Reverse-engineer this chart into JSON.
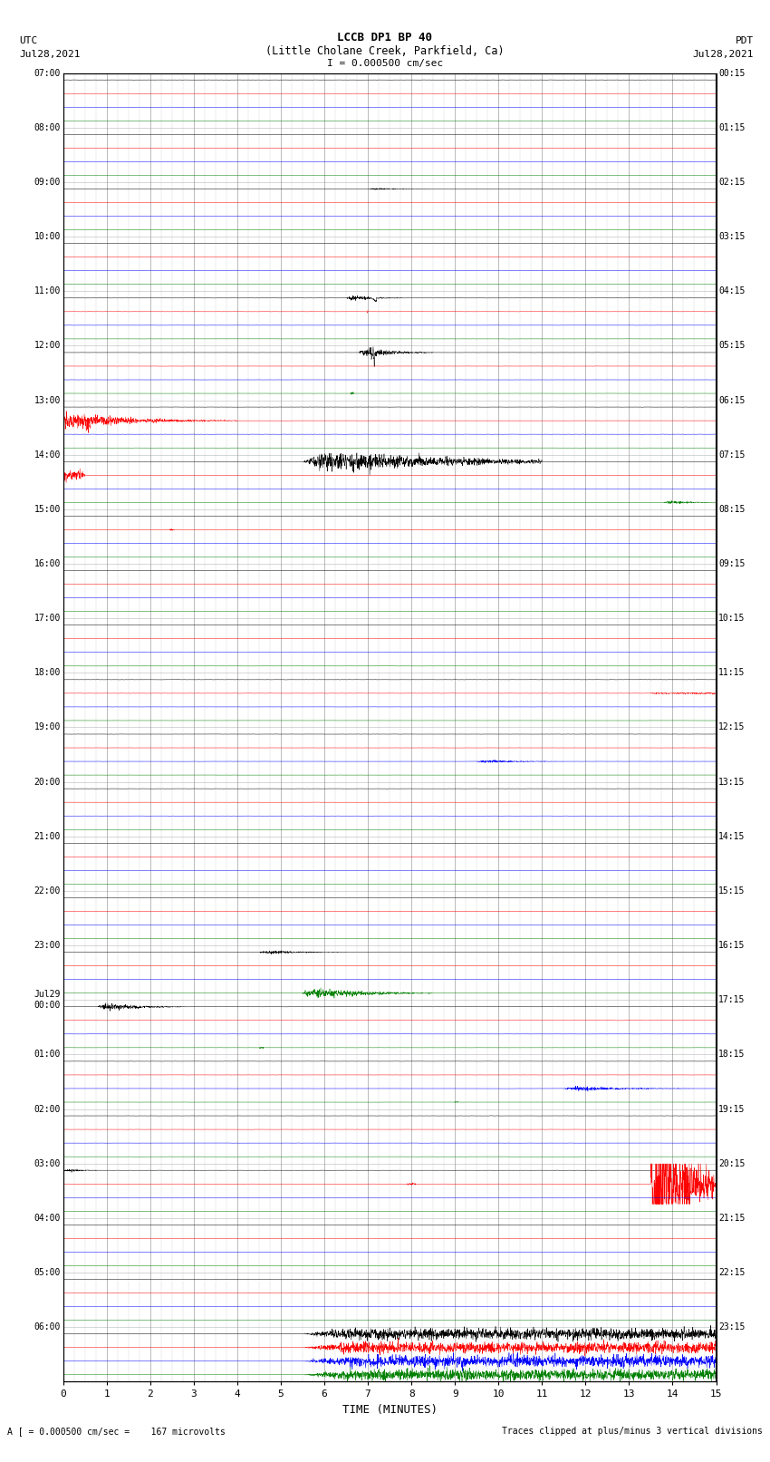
{
  "title_line1": "LCCB DP1 BP 40",
  "title_line2": "(Little Cholane Creek, Parkfield, Ca)",
  "title_line3": "I = 0.000500 cm/sec",
  "left_label_top": "UTC",
  "left_label_date": "Jul28,2021",
  "right_label_top": "PDT",
  "right_label_date": "Jul28,2021",
  "bottom_label": "TIME (MINUTES)",
  "bottom_note_left": "A [ = 0.000500 cm/sec =    167 microvolts",
  "bottom_note_right": "Traces clipped at plus/minus 3 vertical divisions",
  "xlim": [
    0,
    15
  ],
  "xticks": [
    0,
    1,
    2,
    3,
    4,
    5,
    6,
    7,
    8,
    9,
    10,
    11,
    12,
    13,
    14,
    15
  ],
  "background_color": "#ffffff",
  "trace_colors": [
    "black",
    "red",
    "blue",
    "green"
  ],
  "fig_width": 8.5,
  "fig_height": 16.13,
  "n_hour_rows": 24,
  "utc_times": [
    "07:00",
    "08:00",
    "09:00",
    "10:00",
    "11:00",
    "12:00",
    "13:00",
    "14:00",
    "15:00",
    "16:00",
    "17:00",
    "18:00",
    "19:00",
    "20:00",
    "21:00",
    "22:00",
    "23:00",
    "Jul29\n00:00",
    "01:00",
    "02:00",
    "03:00",
    "04:00",
    "05:00",
    "06:00"
  ],
  "pdt_times": [
    "00:15",
    "01:15",
    "02:15",
    "03:15",
    "04:15",
    "05:15",
    "06:15",
    "07:15",
    "08:15",
    "09:15",
    "10:15",
    "11:15",
    "12:15",
    "13:15",
    "14:15",
    "15:15",
    "16:15",
    "17:15",
    "18:15",
    "19:15",
    "20:15",
    "21:15",
    "22:15",
    "23:15"
  ]
}
